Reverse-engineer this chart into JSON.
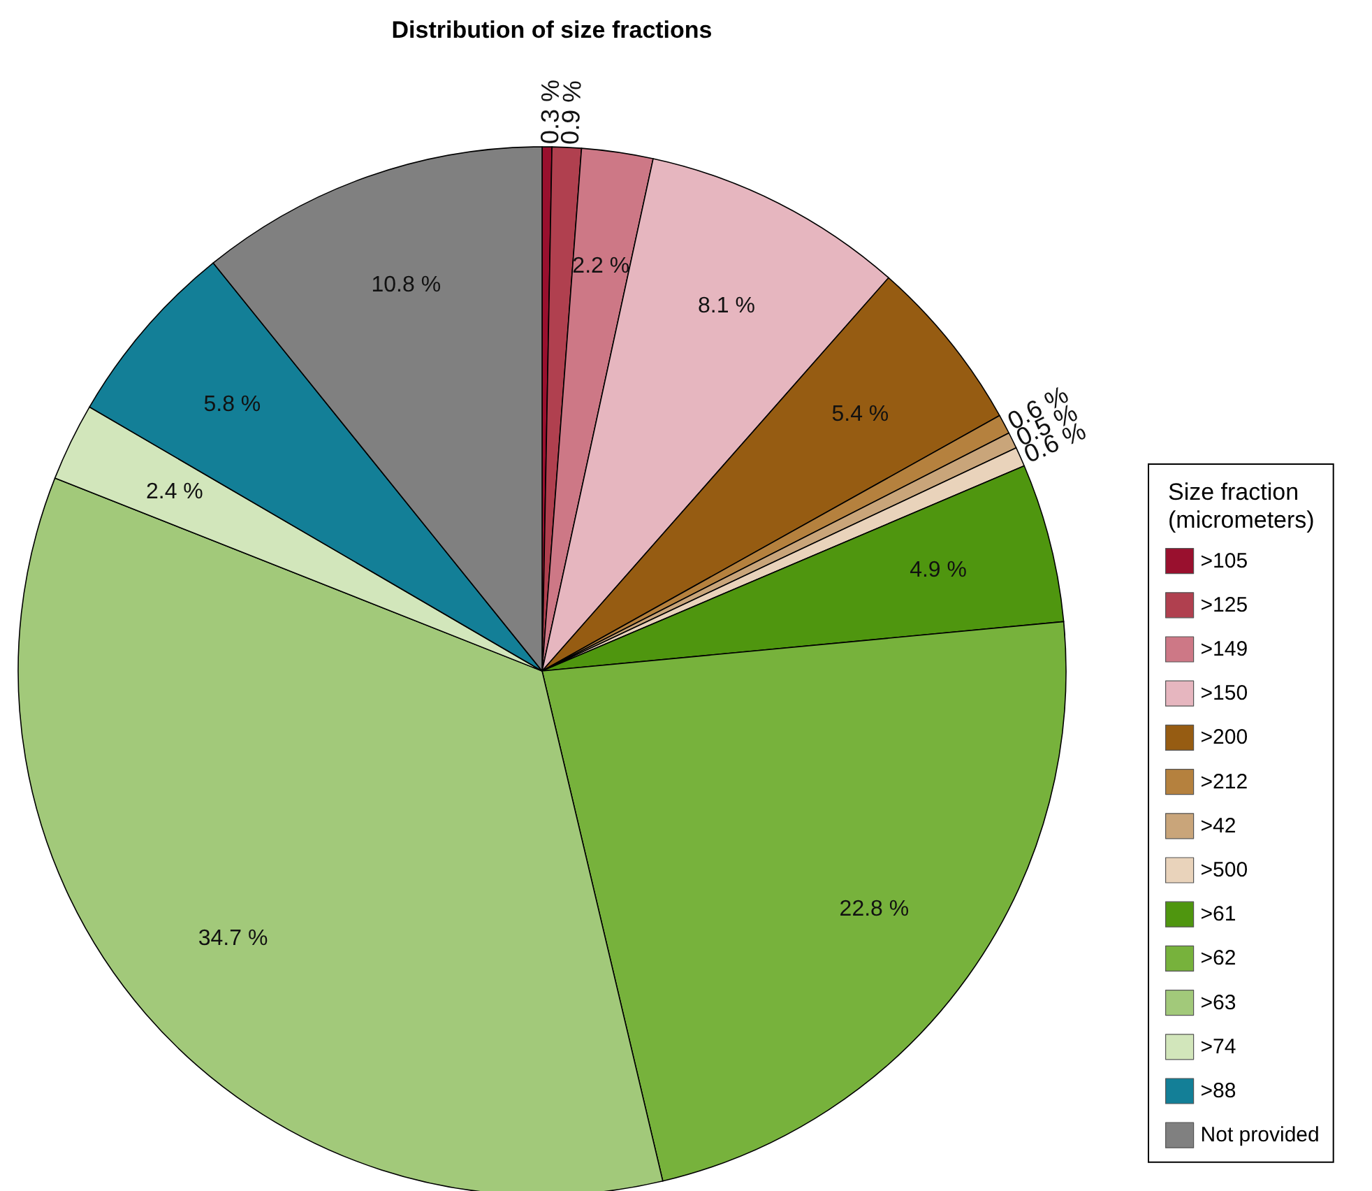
{
  "chart_data": {
    "type": "pie",
    "title": "Distribution of size fractions",
    "legend_title": "Size fraction\n(micrometers)",
    "legend": "right",
    "categories": [
      ">105",
      ">125",
      ">149",
      ">150",
      ">200",
      ">212",
      ">42",
      ">500",
      ">61",
      ">62",
      ">63",
      ">74",
      ">88",
      "Not provided"
    ],
    "values": [
      0.3,
      0.9,
      2.2,
      8.1,
      5.4,
      0.6,
      0.5,
      0.6,
      4.9,
      22.8,
      34.7,
      2.4,
      5.8,
      10.8
    ],
    "value_labels": [
      "0.3 %",
      "0.9 %",
      "2.2 %",
      "8.1 %",
      "5.4 %",
      "0.6 %",
      "0.5 %",
      "0.6 %",
      "4.9 %",
      "22.8 %",
      "34.7 %",
      "2.4 %",
      "5.8 %",
      "10.8 %"
    ],
    "colors": [
      "#99102e",
      "#b0404f",
      "#cd7886",
      "#e6b6bf",
      "#965c12",
      "#b5813e",
      "#c9a57a",
      "#e9d3bb",
      "#4f960f",
      "#77b23c",
      "#a2c97a",
      "#d2e6bb",
      "#137f97",
      "#808080"
    ]
  }
}
